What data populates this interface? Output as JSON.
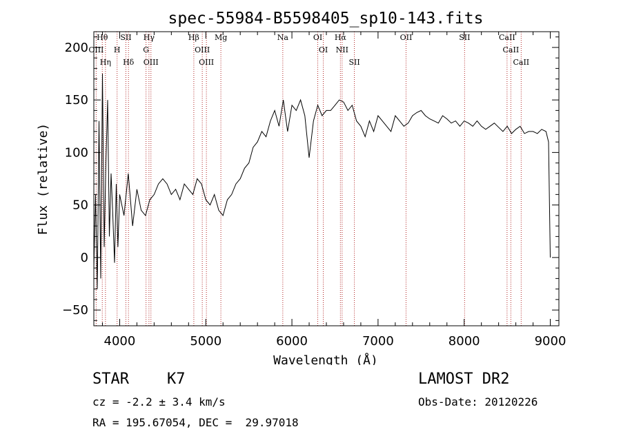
{
  "chart_data": {
    "type": "line",
    "title": "spec-55984-B5598405_sp10-143.fits",
    "xlabel": "Wavelength (Å)",
    "ylabel": "Flux (relative)",
    "xlim": [
      3700,
      9100
    ],
    "ylim": [
      -65,
      215
    ],
    "x_ticks": [
      4000,
      5000,
      6000,
      7000,
      8000,
      9000
    ],
    "y_ticks": [
      -50,
      0,
      50,
      100,
      150,
      200
    ],
    "grid": false,
    "line_color": "#000000",
    "marker_color": "#b02020",
    "series": [
      {
        "x": [
          3700,
          3720,
          3740,
          3760,
          3780,
          3800,
          3820,
          3840,
          3860,
          3880,
          3900,
          3920,
          3940,
          3960,
          3980,
          4000,
          4050,
          4100,
          4150,
          4200,
          4250,
          4300,
          4350,
          4400,
          4450,
          4500,
          4550,
          4600,
          4650,
          4700,
          4750,
          4800,
          4850,
          4900,
          4950,
          5000,
          5050,
          5100,
          5150,
          5200,
          5250,
          5300,
          5350,
          5400,
          5450,
          5500,
          5550,
          5600,
          5650,
          5700,
          5750,
          5800,
          5850,
          5900,
          5950,
          6000,
          6050,
          6100,
          6150,
          6200,
          6250,
          6300,
          6350,
          6400,
          6450,
          6500,
          6550,
          6600,
          6650,
          6700,
          6750,
          6800,
          6850,
          6900,
          6950,
          7000,
          7050,
          7100,
          7150,
          7200,
          7250,
          7300,
          7350,
          7400,
          7450,
          7500,
          7550,
          7600,
          7650,
          7700,
          7750,
          7800,
          7850,
          7900,
          7950,
          8000,
          8050,
          8100,
          8150,
          8200,
          8250,
          8300,
          8350,
          8400,
          8450,
          8500,
          8550,
          8600,
          8650,
          8700,
          8750,
          8800,
          8850,
          8900,
          8950,
          8980,
          9000
        ],
        "y": [
          -10,
          60,
          -30,
          130,
          -20,
          175,
          10,
          90,
          150,
          20,
          80,
          40,
          -5,
          70,
          10,
          60,
          40,
          80,
          30,
          65,
          45,
          40,
          55,
          60,
          70,
          75,
          70,
          60,
          65,
          55,
          70,
          65,
          60,
          75,
          70,
          55,
          50,
          60,
          45,
          40,
          55,
          60,
          70,
          75,
          85,
          90,
          105,
          110,
          120,
          115,
          130,
          140,
          125,
          150,
          120,
          145,
          140,
          150,
          135,
          95,
          130,
          145,
          135,
          140,
          140,
          145,
          150,
          148,
          140,
          145,
          130,
          125,
          115,
          130,
          120,
          135,
          130,
          125,
          120,
          135,
          130,
          125,
          128,
          135,
          138,
          140,
          135,
          132,
          130,
          128,
          135,
          132,
          128,
          130,
          125,
          130,
          128,
          125,
          130,
          125,
          122,
          125,
          128,
          124,
          120,
          125,
          118,
          122,
          125,
          118,
          120,
          120,
          118,
          122,
          120,
          110,
          0
        ]
      }
    ],
    "lines": [
      {
        "label": "Hθ",
        "x": 3798
      },
      {
        "label": "OIII",
        "x": 3727
      },
      {
        "label": "Hη",
        "x": 3835
      },
      {
        "label": "H",
        "x": 3970
      },
      {
        "label": "SII",
        "x": 4072
      },
      {
        "label": "Hδ",
        "x": 4102
      },
      {
        "label": "Hγ",
        "x": 4340
      },
      {
        "label": "G",
        "x": 4306
      },
      {
        "label": "OIII",
        "x": 4363
      },
      {
        "label": "Hβ",
        "x": 4861
      },
      {
        "label": "OIII",
        "x": 4959
      },
      {
        "label": "OIII",
        "x": 5007
      },
      {
        "label": "Mg",
        "x": 5175
      },
      {
        "label": "Na",
        "x": 5894
      },
      {
        "label": "OI",
        "x": 6300
      },
      {
        "label": "OI",
        "x": 6364
      },
      {
        "label": "Hα",
        "x": 6563
      },
      {
        "label": "NII",
        "x": 6583
      },
      {
        "label": "SII",
        "x": 6725
      },
      {
        "label": "OII",
        "x": 7325
      },
      {
        "label": "SII",
        "x": 8005
      },
      {
        "label": "CaII",
        "x": 8498
      },
      {
        "label": "CaII",
        "x": 8542
      },
      {
        "label": "CaII",
        "x": 8662
      }
    ]
  },
  "info": {
    "object_class": "STAR",
    "subclass": "K7",
    "survey": "LAMOST DR2",
    "cz": "cz = -2.2 ± 3.4 km/s",
    "obs_date": "Obs-Date: 20120226",
    "coords": "RA = 195.67054, DEC =  29.97018"
  }
}
